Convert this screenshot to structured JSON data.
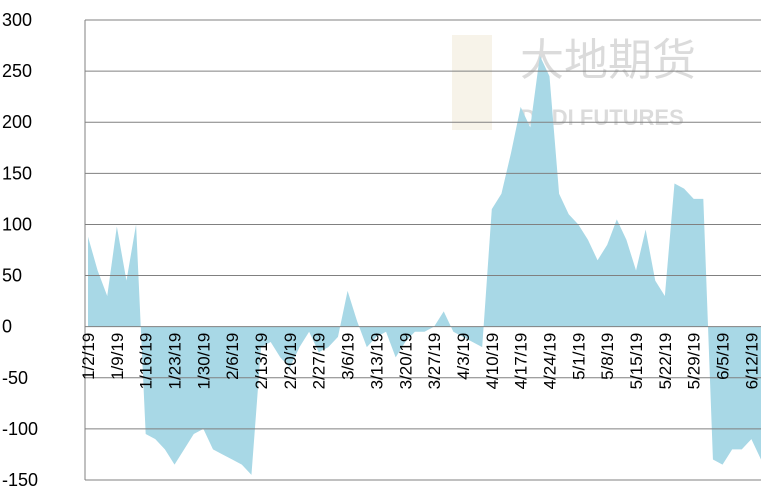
{
  "chart_data": {
    "type": "area",
    "watermark": [
      "大地期货",
      "DADI FUTURES"
    ],
    "categories": [
      "1/2/19",
      null,
      null,
      "1/9/19",
      null,
      null,
      "1/16/19",
      null,
      null,
      "1/23/19",
      null,
      null,
      "1/30/19",
      null,
      null,
      "2/6/19",
      null,
      null,
      "2/13/19",
      null,
      null,
      "2/20/19",
      null,
      null,
      "2/27/19",
      null,
      null,
      "3/6/19",
      null,
      null,
      "3/13/19",
      null,
      null,
      "3/20/19",
      null,
      null,
      "3/27/19",
      null,
      null,
      "4/3/19",
      null,
      null,
      "4/10/19",
      null,
      null,
      "4/17/19",
      null,
      null,
      "4/24/19",
      null,
      null,
      "5/1/19",
      null,
      null,
      "5/8/19",
      null,
      null,
      "5/15/19",
      null,
      null,
      "5/22/19",
      null,
      null,
      "5/29/19",
      null,
      null,
      "6/5/19",
      null,
      null,
      "6/12/19",
      null
    ],
    "values": [
      88,
      55,
      30,
      98,
      45,
      100,
      -105,
      -110,
      -120,
      -135,
      -120,
      -105,
      -100,
      -120,
      -125,
      -130,
      -135,
      -145,
      -20,
      -15,
      -30,
      -40,
      -20,
      -5,
      -25,
      -20,
      -10,
      35,
      5,
      -20,
      -10,
      -5,
      -30,
      -15,
      -5,
      -5,
      0,
      15,
      -5,
      -10,
      -15,
      -20,
      115,
      130,
      170,
      215,
      195,
      265,
      245,
      130,
      110,
      100,
      85,
      65,
      80,
      105,
      85,
      55,
      95,
      45,
      30,
      140,
      135,
      125,
      125,
      -130,
      -135,
      -120,
      -120,
      -110,
      -130
    ],
    "color": "#a8d8e6",
    "ylim": [
      -150,
      300
    ],
    "yticks": [
      -150,
      -100,
      -50,
      0,
      50,
      100,
      150,
      200,
      250,
      300
    ],
    "grid": true
  }
}
